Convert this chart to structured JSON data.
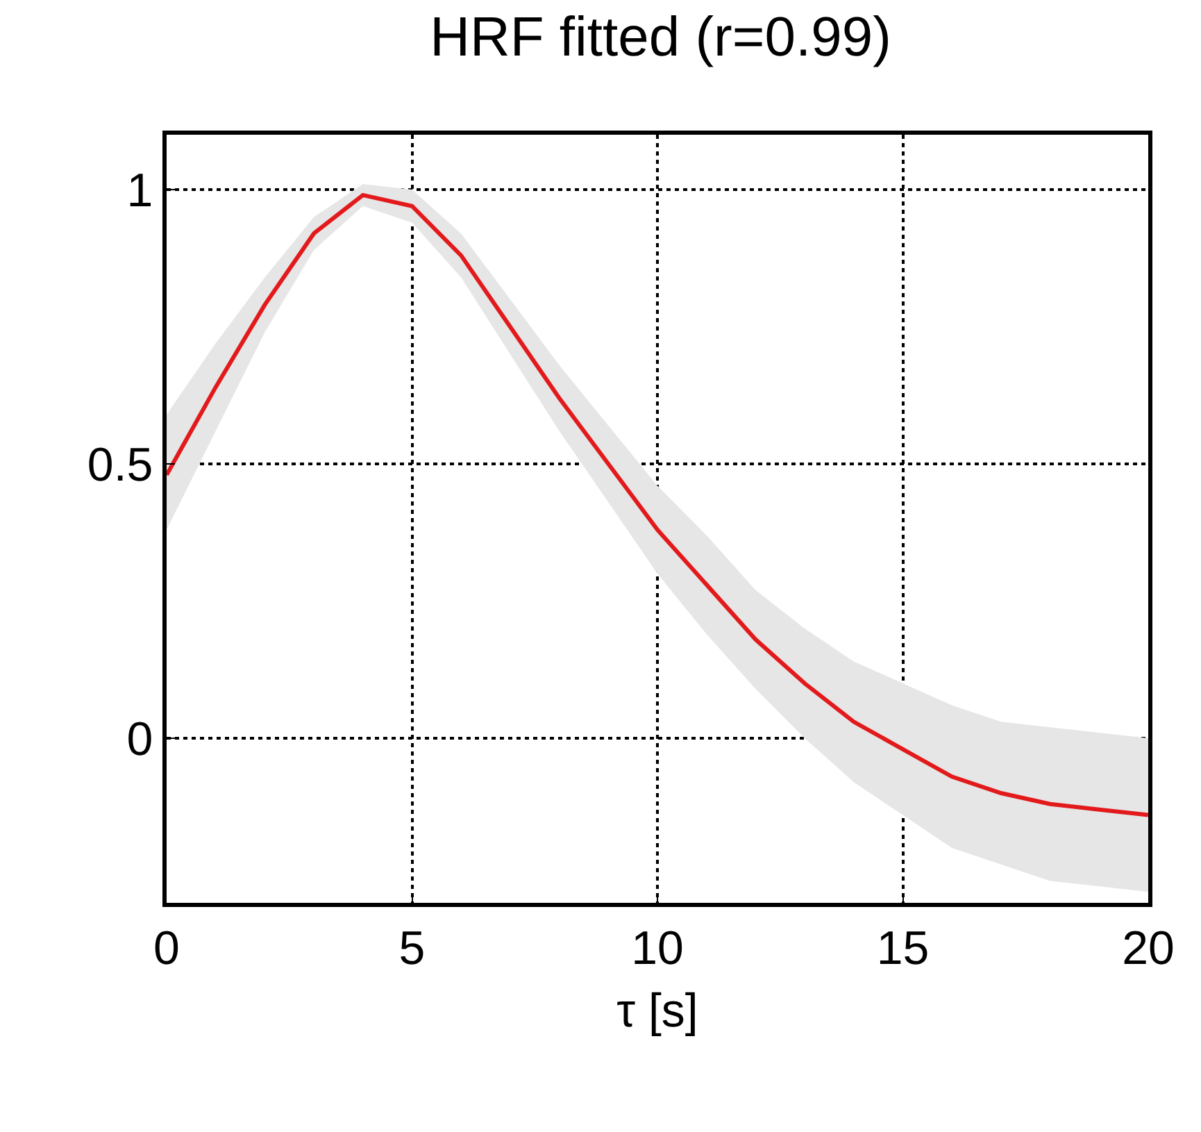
{
  "chart_data": {
    "type": "line",
    "title": "HRF fitted (r=0.99)",
    "xlabel": "τ [s]",
    "x": [
      0,
      1,
      2,
      3,
      4,
      5,
      6,
      7,
      8,
      9,
      10,
      11,
      12,
      13,
      14,
      15,
      16,
      17,
      18,
      19,
      20
    ],
    "series": [
      {
        "color": "#e31a1c",
        "values": [
          0.48,
          0.64,
          0.79,
          0.92,
          0.99,
          0.97,
          0.88,
          0.75,
          0.62,
          0.5,
          0.38,
          0.28,
          0.18,
          0.1,
          0.03,
          -0.02,
          -0.07,
          -0.1,
          -0.12,
          -0.13,
          -0.14
        ],
        "lower": [
          0.38,
          0.56,
          0.74,
          0.89,
          0.97,
          0.94,
          0.84,
          0.7,
          0.56,
          0.43,
          0.3,
          0.19,
          0.09,
          0.0,
          -0.08,
          -0.14,
          -0.2,
          -0.23,
          -0.26,
          -0.27,
          -0.28
        ],
        "upper": [
          0.59,
          0.72,
          0.84,
          0.95,
          1.01,
          1.0,
          0.92,
          0.8,
          0.68,
          0.57,
          0.46,
          0.37,
          0.27,
          0.2,
          0.14,
          0.1,
          0.06,
          0.03,
          0.02,
          0.01,
          0.0
        ]
      }
    ],
    "xlim": [
      0,
      20
    ],
    "xticks": [
      0,
      5,
      10,
      15,
      20
    ],
    "ylim": [
      -0.3,
      1.1
    ],
    "yticks": [
      0,
      0.5,
      1
    ],
    "grid": true,
    "marker": "none",
    "line_style": "solid"
  }
}
